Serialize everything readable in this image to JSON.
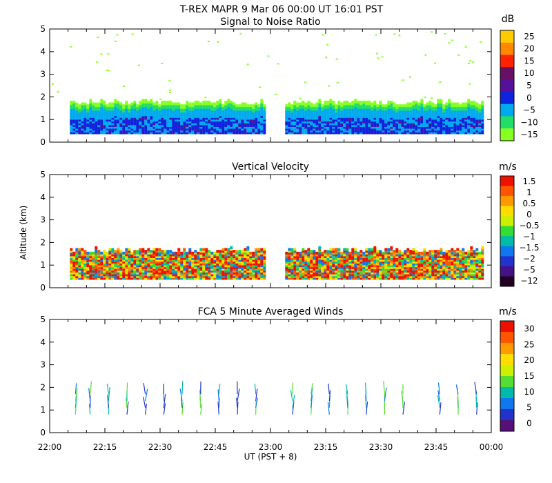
{
  "header": {
    "line1": "T-REX   MAPR   9 Mar 06   00:00 UT   16:01   PST"
  },
  "y_axis_label": "Altitude (km)",
  "x_axis": {
    "label": "UT  (PST + 8)",
    "ticks": [
      "22:00",
      "22:15",
      "22:30",
      "22:45",
      "23:00",
      "23:15",
      "23:30",
      "23:45",
      "00:00"
    ]
  },
  "chart_data": [
    {
      "type": "heatmap",
      "title": "Signal to Noise Ratio",
      "unit": "dB",
      "ylabel": "",
      "ylim": [
        0,
        5
      ],
      "yticks": [
        "0",
        "1",
        "2",
        "3",
        "4",
        "5"
      ],
      "xlim_minutes_after_2200": [
        0,
        120
      ],
      "colorbar_labels": [
        "25",
        "20",
        "15",
        "10",
        "5",
        "0",
        "−5",
        "−10",
        "−15"
      ],
      "colorbar_colors": [
        "#ffcc00",
        "#ff8800",
        "#ff2200",
        "#661166",
        "#551199",
        "#1122dd",
        "#00aaee",
        "#22dd66",
        "#88ff22"
      ],
      "data_gap_minutes": [
        58,
        64
      ],
      "echo_top_km": 1.7
    },
    {
      "type": "heatmap",
      "title": "Vertical Velocity",
      "unit": "m/s",
      "ylabel": "Altitude (km)",
      "ylim": [
        0,
        5
      ],
      "yticks": [
        "0",
        "1",
        "2",
        "3",
        "4",
        "5"
      ],
      "xlim_minutes_after_2200": [
        0,
        120
      ],
      "colorbar_labels": [
        "1.5",
        "1",
        "0.5",
        "0",
        "−0.5",
        "−1",
        "−1.5",
        "−2",
        "−5",
        "−12"
      ],
      "colorbar_colors": [
        "#ee1100",
        "#ff5500",
        "#ff9900",
        "#ffdd00",
        "#ccee00",
        "#33dd33",
        "#00bbaa",
        "#1177ee",
        "#2233cc",
        "#441188",
        "#220022"
      ],
      "data_gap_minutes": [
        58,
        64
      ],
      "echo_top_km": 1.6
    },
    {
      "type": "scatter",
      "title": "FCA 5 Minute Averaged Winds",
      "unit": "m/s",
      "ylabel": "",
      "ylim": [
        0,
        5
      ],
      "yticks": [
        "0",
        "1",
        "2",
        "3",
        "4",
        "5"
      ],
      "xlim_minutes_after_2200": [
        0,
        120
      ],
      "colorbar_labels": [
        "30",
        "25",
        "20",
        "15",
        "10",
        "5",
        "0"
      ],
      "colorbar_colors": [
        "#ee1100",
        "#ff5500",
        "#ff9900",
        "#ffdd00",
        "#ccee00",
        "#55dd33",
        "#00bbaa",
        "#1177ee",
        "#2233cc",
        "#551177"
      ],
      "profile_times_minutes": [
        7,
        11,
        16,
        21,
        26,
        31,
        36,
        41,
        46,
        51,
        56,
        66,
        71,
        76,
        81,
        86,
        91,
        96,
        106,
        111,
        116
      ],
      "profile_altitudes_km": [
        0.8,
        1.1,
        1.4,
        1.7
      ]
    }
  ]
}
